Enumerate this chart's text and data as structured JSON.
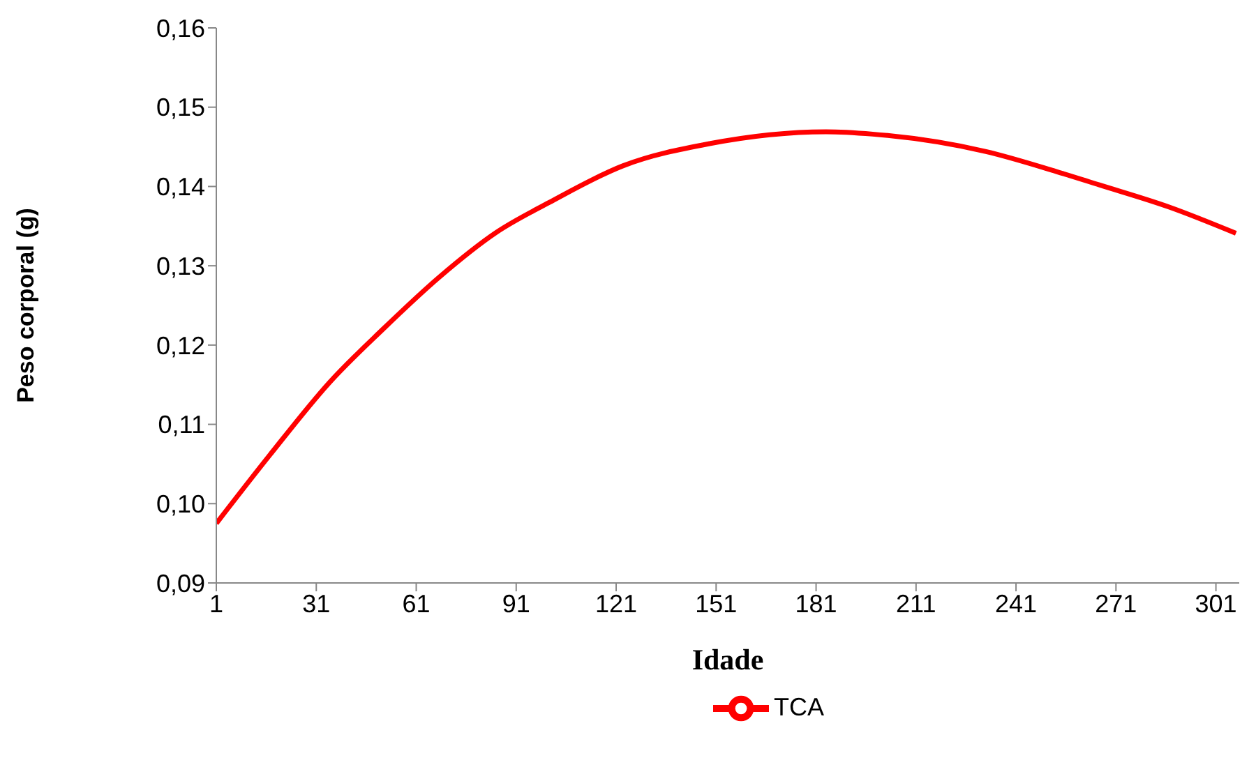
{
  "chart_data": {
    "type": "line",
    "xlabel": "Idade",
    "ylabel": "Peso corporal (g)",
    "x": [
      1,
      17,
      35,
      51,
      68,
      85,
      101,
      123,
      149,
      184,
      198,
      232,
      253,
      266,
      287,
      307
    ],
    "series": [
      {
        "name": "TCA",
        "color": "#ff0000",
        "values": [
          0.0975,
          0.1061,
          0.1153,
          0.122,
          0.1286,
          0.1342,
          0.138,
          0.1426,
          0.1454,
          0.1469,
          0.1466,
          0.1444,
          0.1419,
          0.1402,
          0.1374,
          0.1341
        ]
      }
    ],
    "xlim": [
      1,
      308
    ],
    "xticks": [
      1,
      31,
      61,
      91,
      121,
      151,
      181,
      211,
      241,
      271,
      301
    ],
    "ylim": [
      0.09,
      0.16
    ],
    "yticks": [
      {
        "value": 0.09,
        "label": "0,09"
      },
      {
        "value": 0.1,
        "label": "0,10"
      },
      {
        "value": 0.11,
        "label": "0,11"
      },
      {
        "value": 0.12,
        "label": "0,12"
      },
      {
        "value": 0.13,
        "label": "0,13"
      },
      {
        "value": 0.14,
        "label": "0,14"
      },
      {
        "value": 0.15,
        "label": "0,15"
      },
      {
        "value": 0.16,
        "label": "0,16"
      }
    ],
    "grid": false,
    "legend": "bottom",
    "marker": "none",
    "line_style": "solid"
  }
}
